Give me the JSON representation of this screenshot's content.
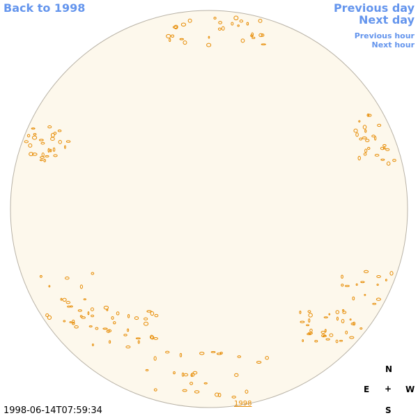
{
  "nav": {
    "back_year": "Back to 1998",
    "previous_day": "Previous day",
    "next_day": "Next day",
    "previous_hour": "Previous hour",
    "next_hour": "Next hour"
  },
  "timestamp": "1998-06-14T07:59:34",
  "year_link": "1998",
  "compass": {
    "north": "N",
    "east": "E",
    "center": "+",
    "west": "W",
    "south": "S"
  }
}
